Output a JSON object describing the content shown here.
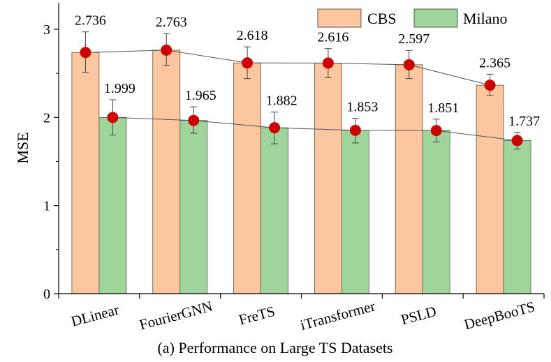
{
  "chart_data": {
    "type": "bar",
    "categories": [
      "DLinear",
      "FourierGNN",
      "FreTS",
      "iTransformer",
      "PSLD",
      "DeepBooTS"
    ],
    "series": [
      {
        "name": "CBS",
        "values": [
          2.736,
          2.763,
          2.618,
          2.616,
          2.597,
          2.365
        ],
        "error_low": [
          2.51,
          2.59,
          2.44,
          2.45,
          2.44,
          2.25
        ],
        "error_high": [
          2.97,
          2.95,
          2.8,
          2.78,
          2.76,
          2.49
        ],
        "color": "#fcc79e"
      },
      {
        "name": "Milano",
        "values": [
          1.999,
          1.965,
          1.882,
          1.853,
          1.851,
          1.737
        ],
        "error_low": [
          1.8,
          1.82,
          1.7,
          1.71,
          1.72,
          1.64
        ],
        "error_high": [
          2.2,
          2.12,
          2.06,
          1.99,
          1.98,
          1.83
        ],
        "color": "#9fd49a"
      }
    ],
    "value_labels": [
      [
        "2.736",
        "2.763",
        "2.618",
        "2.616",
        "2.597",
        "2.365"
      ],
      [
        "1.999",
        "1.965",
        "1.882",
        "1.853",
        "1.851",
        "1.737"
      ]
    ],
    "marker_color": "#cc0000",
    "line_color": "#555555",
    "ylabel": "MSE",
    "xlabel": "",
    "ylim": [
      0,
      3.3
    ],
    "yticks": [
      "0",
      "1",
      "2",
      "3"
    ],
    "ytick_values": [
      0,
      1,
      2,
      3
    ],
    "legend_position": "top-right",
    "grid": false,
    "caption": "(a) Performance on Large TS Datasets"
  }
}
